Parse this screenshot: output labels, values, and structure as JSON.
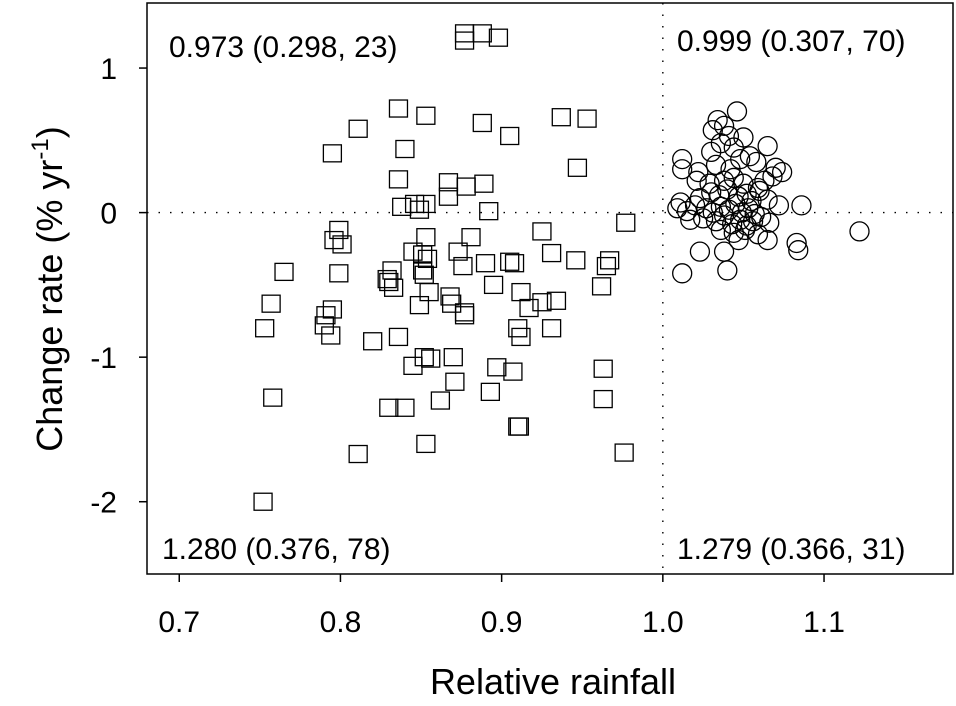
{
  "chart_data": {
    "type": "scatter",
    "xlabel": "Relative rainfall",
    "ylabel": "Change rate (% yr",
    "ylabel_sup": "-1",
    "ylabel_close": ")",
    "xlim": [
      0.68,
      1.18
    ],
    "ylim": [
      -2.5,
      1.45
    ],
    "x_ticks": [
      0.7,
      0.8,
      0.9,
      1.0,
      1.1
    ],
    "x_tick_labels": [
      "0.7",
      "0.8",
      "0.9",
      "1.0",
      "1.1"
    ],
    "y_ticks": [
      -2,
      -1,
      0,
      1
    ],
    "y_tick_labels": [
      "-2",
      "-1",
      "0",
      "1"
    ],
    "reference_lines": {
      "x": 1.0,
      "y": 0,
      "style": "dotted"
    },
    "annotations": {
      "top_left": "0.973 (0.298, 23)",
      "top_right": "0.999 (0.307, 70)",
      "bottom_left": "1.280 (0.376, 78)",
      "bottom_right": "1.279 (0.366, 31)"
    },
    "series": [
      {
        "marker": "square",
        "points": [
          [
            0.877,
            1.24
          ],
          [
            0.877,
            1.19
          ],
          [
            0.888,
            1.24
          ],
          [
            0.898,
            1.21
          ],
          [
            0.811,
            0.58
          ],
          [
            0.836,
            0.72
          ],
          [
            0.853,
            0.67
          ],
          [
            0.888,
            0.62
          ],
          [
            0.905,
            0.53
          ],
          [
            0.937,
            0.66
          ],
          [
            0.953,
            0.65
          ],
          [
            0.795,
            0.41
          ],
          [
            0.84,
            0.44
          ],
          [
            0.947,
            0.31
          ],
          [
            0.836,
            0.23
          ],
          [
            0.867,
            0.21
          ],
          [
            0.878,
            0.18
          ],
          [
            0.889,
            0.2
          ],
          [
            0.867,
            0.11
          ],
          [
            0.838,
            0.04
          ],
          [
            0.846,
            0.06
          ],
          [
            0.853,
            0.06
          ],
          [
            0.849,
            0.02
          ],
          [
            0.892,
            0.01
          ],
          [
            0.977,
            -0.07
          ],
          [
            0.799,
            -0.12
          ],
          [
            0.801,
            -0.22
          ],
          [
            0.796,
            -0.19
          ],
          [
            0.853,
            -0.17
          ],
          [
            0.881,
            -0.17
          ],
          [
            0.925,
            -0.13
          ],
          [
            0.845,
            -0.27
          ],
          [
            0.854,
            -0.32
          ],
          [
            0.851,
            -0.29
          ],
          [
            0.873,
            -0.27
          ],
          [
            0.905,
            -0.34
          ],
          [
            0.931,
            -0.28
          ],
          [
            0.946,
            -0.33
          ],
          [
            0.965,
            -0.37
          ],
          [
            0.967,
            -0.33
          ],
          [
            0.765,
            -0.41
          ],
          [
            0.799,
            -0.42
          ],
          [
            0.832,
            -0.4
          ],
          [
            0.829,
            -0.46
          ],
          [
            0.851,
            -0.4
          ],
          [
            0.852,
            -0.43
          ],
          [
            0.876,
            -0.37
          ],
          [
            0.89,
            -0.35
          ],
          [
            0.908,
            -0.35
          ],
          [
            0.895,
            -0.5
          ],
          [
            0.912,
            -0.55
          ],
          [
            0.917,
            -0.66
          ],
          [
            0.757,
            -0.63
          ],
          [
            0.83,
            -0.48
          ],
          [
            0.833,
            -0.52
          ],
          [
            0.855,
            -0.55
          ],
          [
            0.849,
            -0.64
          ],
          [
            0.868,
            -0.58
          ],
          [
            0.869,
            -0.63
          ],
          [
            0.877,
            -0.69
          ],
          [
            0.877,
            -0.71
          ],
          [
            0.934,
            -0.61
          ],
          [
            0.962,
            -0.51
          ],
          [
            0.753,
            -0.8
          ],
          [
            0.791,
            -0.71
          ],
          [
            0.795,
            -0.67
          ],
          [
            0.79,
            -0.78
          ],
          [
            0.794,
            -0.85
          ],
          [
            0.91,
            -0.8
          ],
          [
            0.912,
            -0.86
          ],
          [
            0.931,
            -0.8
          ],
          [
            0.925,
            -0.62
          ],
          [
            0.82,
            -0.89
          ],
          [
            0.836,
            -0.86
          ],
          [
            0.852,
            -1.0
          ],
          [
            0.856,
            -1.01
          ],
          [
            0.845,
            -1.06
          ],
          [
            0.87,
            -1.0
          ],
          [
            0.897,
            -1.07
          ],
          [
            0.907,
            -1.1
          ],
          [
            0.963,
            -1.08
          ],
          [
            0.758,
            -1.28
          ],
          [
            0.83,
            -1.35
          ],
          [
            0.84,
            -1.35
          ],
          [
            0.862,
            -1.3
          ],
          [
            0.871,
            -1.17
          ],
          [
            0.893,
            -1.24
          ],
          [
            0.91,
            -1.48
          ],
          [
            0.911,
            -1.48
          ],
          [
            0.963,
            -1.29
          ],
          [
            0.811,
            -1.67
          ],
          [
            0.853,
            -1.6
          ],
          [
            0.976,
            -1.66
          ],
          [
            0.752,
            -2.0
          ]
        ]
      },
      {
        "marker": "circle",
        "points": [
          [
            1.046,
            0.7
          ],
          [
            1.034,
            0.64
          ],
          [
            1.031,
            0.57
          ],
          [
            1.038,
            0.6
          ],
          [
            1.041,
            0.53
          ],
          [
            1.05,
            0.52
          ],
          [
            1.036,
            0.48
          ],
          [
            1.044,
            0.45
          ],
          [
            1.065,
            0.46
          ],
          [
            1.012,
            0.37
          ],
          [
            1.03,
            0.42
          ],
          [
            1.048,
            0.37
          ],
          [
            1.054,
            0.39
          ],
          [
            1.012,
            0.3
          ],
          [
            1.022,
            0.28
          ],
          [
            1.033,
            0.33
          ],
          [
            1.042,
            0.3
          ],
          [
            1.058,
            0.35
          ],
          [
            1.07,
            0.31
          ],
          [
            1.074,
            0.28
          ],
          [
            1.021,
            0.22
          ],
          [
            1.029,
            0.2
          ],
          [
            1.038,
            0.22
          ],
          [
            1.044,
            0.24
          ],
          [
            1.05,
            0.2
          ],
          [
            1.059,
            0.17
          ],
          [
            1.063,
            0.22
          ],
          [
            1.068,
            0.25
          ],
          [
            1.011,
            0.07
          ],
          [
            1.023,
            0.1
          ],
          [
            1.03,
            0.14
          ],
          [
            1.035,
            0.12
          ],
          [
            1.04,
            0.16
          ],
          [
            1.047,
            0.11
          ],
          [
            1.052,
            0.13
          ],
          [
            1.055,
            0.08
          ],
          [
            1.06,
            0.15
          ],
          [
            1.065,
            0.09
          ],
          [
            1.009,
            0.03
          ],
          [
            1.015,
            0.01
          ],
          [
            1.02,
            0.05
          ],
          [
            1.027,
            0.03
          ],
          [
            1.031,
            0.0
          ],
          [
            1.036,
            0.04
          ],
          [
            1.041,
            0.02
          ],
          [
            1.045,
            0.06
          ],
          [
            1.049,
            0.0
          ],
          [
            1.053,
            0.03
          ],
          [
            1.057,
            -0.01
          ],
          [
            1.072,
            0.05
          ],
          [
            1.086,
            0.05
          ],
          [
            1.017,
            -0.05
          ],
          [
            1.025,
            -0.04
          ],
          [
            1.033,
            -0.06
          ],
          [
            1.038,
            -0.02
          ],
          [
            1.043,
            -0.08
          ],
          [
            1.048,
            -0.05
          ],
          [
            1.052,
            -0.09
          ],
          [
            1.056,
            -0.06
          ],
          [
            1.061,
            -0.03
          ],
          [
            1.066,
            -0.07
          ],
          [
            1.036,
            -0.12
          ],
          [
            1.044,
            -0.14
          ],
          [
            1.051,
            -0.12
          ],
          [
            1.059,
            -0.15
          ],
          [
            1.065,
            -0.19
          ],
          [
            1.047,
            -0.19
          ],
          [
            1.122,
            -0.13
          ],
          [
            1.023,
            -0.27
          ],
          [
            1.038,
            -0.27
          ],
          [
            1.083,
            -0.21
          ],
          [
            1.084,
            -0.26
          ],
          [
            1.012,
            -0.42
          ],
          [
            1.04,
            -0.4
          ]
        ]
      }
    ]
  }
}
